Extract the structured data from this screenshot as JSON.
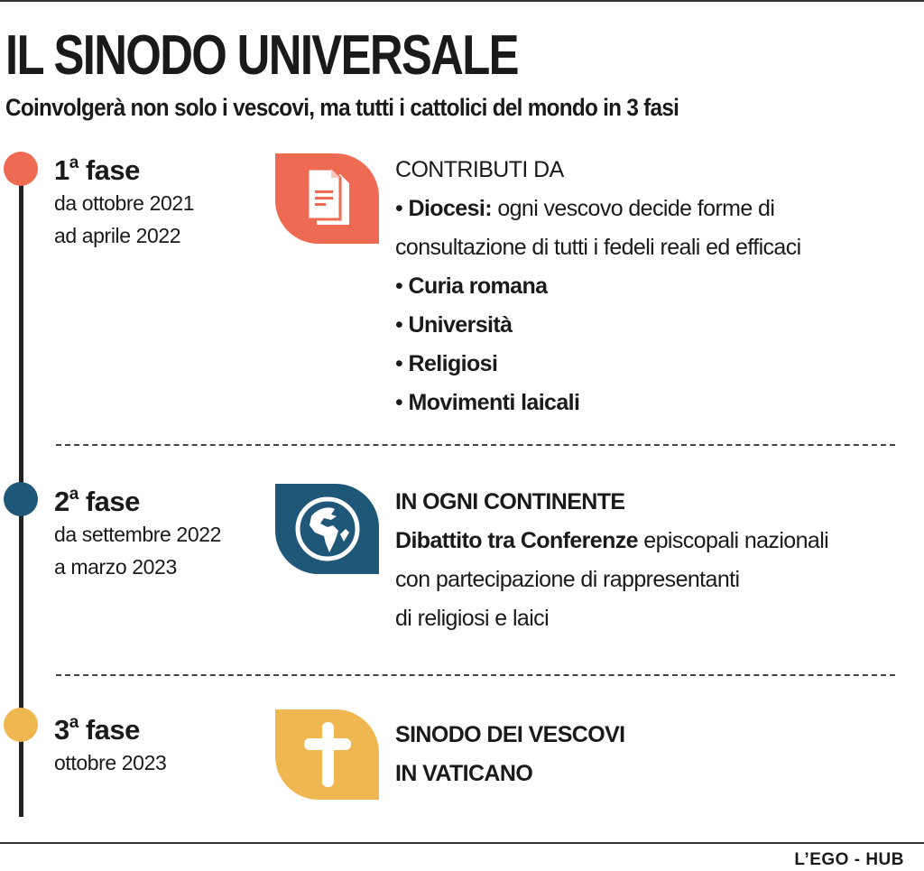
{
  "title": "IL SINODO UNIVERSALE",
  "subtitle": "Coinvolgerà non solo i vescovi, ma tutti i cattolici del mondo in 3 fasi",
  "colors": {
    "phase1": "#ee6a52",
    "phase2": "#1e5777",
    "phase3": "#efb74f",
    "timeline": "#222222"
  },
  "phases": [
    {
      "number": "1",
      "sup": "a",
      "label": "fase",
      "date1": "da ottobre 2021",
      "date2": "ad aprile 2022",
      "icon": "document-icon",
      "heading": "CONTRIBUTI DA",
      "items": [
        {
          "bold": "Diocesi:",
          "text": " ogni vescovo decide forme di"
        },
        {
          "bold": "",
          "text": "consultazione di tutti i fedeli  reali ed efficaci"
        },
        {
          "bold": "Curia romana"
        },
        {
          "bold": "Università"
        },
        {
          "bold": "Religiosi"
        },
        {
          "bold": "Movimenti laicali"
        }
      ]
    },
    {
      "number": "2",
      "sup": "a",
      "label": "fase",
      "date1": "da settembre 2022",
      "date2": "a marzo 2023",
      "icon": "globe-icon",
      "heading": "IN OGNI CONTINENTE",
      "bold": "Dibattito tra Conferenze",
      "text1": " episcopali nazionali",
      "text2": "con partecipazione di rappresentanti",
      "text3": "di religiosi e laici"
    },
    {
      "number": "3",
      "sup": "a",
      "label": "fase",
      "date1": "ottobre 2023",
      "icon": "cross-icon",
      "heading1": "SINODO DEI VESCOVI",
      "heading2": "IN VATICANO"
    }
  ],
  "footer": "L’EGO - HUB"
}
